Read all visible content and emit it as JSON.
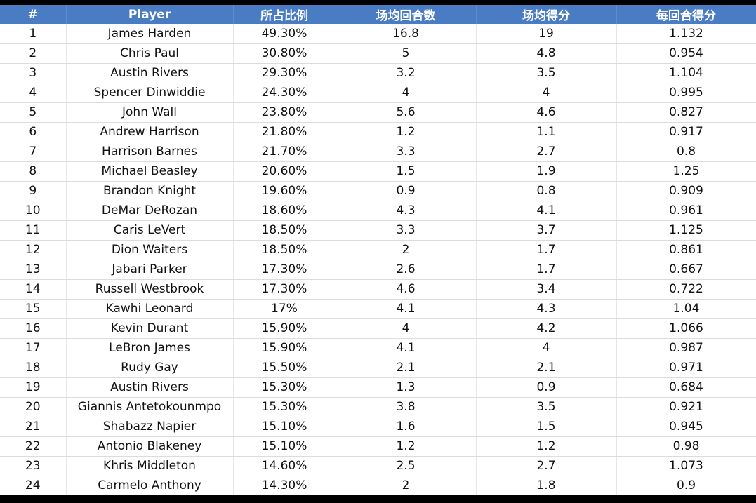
{
  "table": {
    "headers": [
      "#",
      "Player",
      "所占比例",
      "场均回合数",
      "场均得分",
      "每回合得分"
    ],
    "rows": [
      [
        "1",
        "James Harden",
        "49.30%",
        "16.8",
        "19",
        "1.132"
      ],
      [
        "2",
        "Chris Paul",
        "30.80%",
        "5",
        "4.8",
        "0.954"
      ],
      [
        "3",
        "Austin Rivers",
        "29.30%",
        "3.2",
        "3.5",
        "1.104"
      ],
      [
        "4",
        "Spencer Dinwiddie",
        "24.30%",
        "4",
        "4",
        "0.995"
      ],
      [
        "5",
        "John Wall",
        "23.80%",
        "5.6",
        "4.6",
        "0.827"
      ],
      [
        "6",
        "Andrew Harrison",
        "21.80%",
        "1.2",
        "1.1",
        "0.917"
      ],
      [
        "7",
        "Harrison Barnes",
        "21.70%",
        "3.3",
        "2.7",
        "0.8"
      ],
      [
        "8",
        "Michael Beasley",
        "20.60%",
        "1.5",
        "1.9",
        "1.25"
      ],
      [
        "9",
        "Brandon Knight",
        "19.60%",
        "0.9",
        "0.8",
        "0.909"
      ],
      [
        "10",
        "DeMar DeRozan",
        "18.60%",
        "4.3",
        "4.1",
        "0.961"
      ],
      [
        "11",
        "Caris LeVert",
        "18.50%",
        "3.3",
        "3.7",
        "1.125"
      ],
      [
        "12",
        "Dion Waiters",
        "18.50%",
        "2",
        "1.7",
        "0.861"
      ],
      [
        "13",
        "Jabari Parker",
        "17.30%",
        "2.6",
        "1.7",
        "0.667"
      ],
      [
        "14",
        "Russell Westbrook",
        "17.30%",
        "4.6",
        "3.4",
        "0.722"
      ],
      [
        "15",
        "Kawhi Leonard",
        "17%",
        "4.1",
        "4.3",
        "1.04"
      ],
      [
        "16",
        "Kevin Durant",
        "15.90%",
        "4",
        "4.2",
        "1.066"
      ],
      [
        "17",
        "LeBron James",
        "15.90%",
        "4.1",
        "4",
        "0.987"
      ],
      [
        "18",
        "Rudy Gay",
        "15.50%",
        "2.1",
        "2.1",
        "0.971"
      ],
      [
        "19",
        "Austin Rivers",
        "15.30%",
        "1.3",
        "0.9",
        "0.684"
      ],
      [
        "20",
        "Giannis Antetokounmpo",
        "15.30%",
        "3.8",
        "3.5",
        "0.921"
      ],
      [
        "21",
        "Shabazz Napier",
        "15.10%",
        "1.6",
        "1.5",
        "0.945"
      ],
      [
        "22",
        "Antonio Blakeney",
        "15.10%",
        "1.2",
        "1.2",
        "0.98"
      ],
      [
        "23",
        "Khris Middleton",
        "14.60%",
        "2.5",
        "2.7",
        "1.073"
      ],
      [
        "24",
        "Carmelo Anthony",
        "14.30%",
        "2",
        "1.8",
        "0.9"
      ]
    ]
  },
  "colors": {
    "header_background": "#4a7cc4",
    "header_text": "#ffffff",
    "frame": "#000000"
  }
}
